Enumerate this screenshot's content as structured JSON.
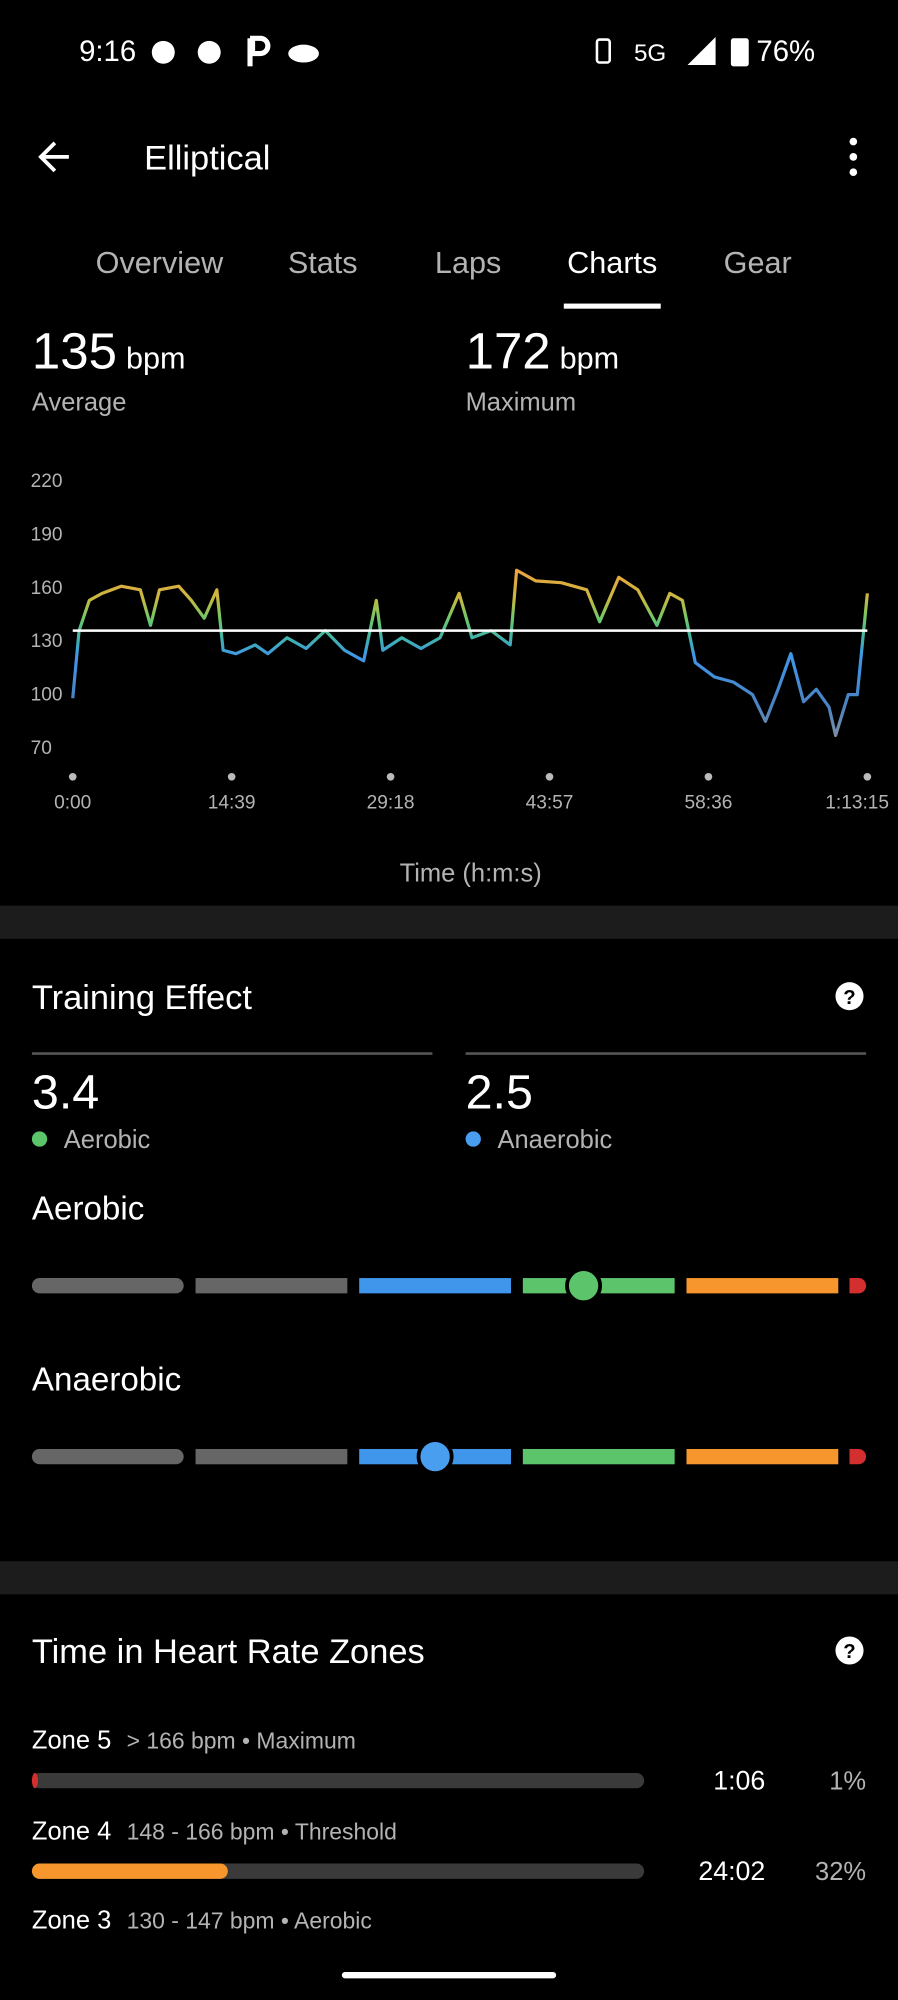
{
  "status_bar": {
    "time": "9:16",
    "network": "5G",
    "battery": "76%"
  },
  "header": {
    "title": "Elliptical"
  },
  "tabs": [
    "Overview",
    "Stats",
    "Laps",
    "Charts",
    "Gear"
  ],
  "active_tab": 3,
  "summary": [
    {
      "value": 135,
      "unit": "bpm",
      "label": "Average"
    },
    {
      "value": 172,
      "unit": "bpm",
      "label": "Maximum"
    }
  ],
  "chart_data": {
    "type": "line",
    "x_label": "Time (h:m:s)",
    "x": [
      0,
      35,
      92,
      162,
      268,
      374,
      430,
      480,
      586,
      656,
      727,
      797,
      832,
      903,
      1009,
      1079,
      1185,
      1291,
      1397,
      1503,
      1609,
      1679,
      1715,
      1820,
      1926,
      2032,
      2137,
      2208,
      2314,
      2420,
      2455,
      2561,
      2702,
      2843,
      2914,
      3020,
      3125,
      3231,
      3302,
      3372,
      3443,
      3549,
      3654,
      3760,
      3831,
      3901,
      3972,
      4042,
      4113,
      4183,
      4219,
      4289,
      4339,
      4395
    ],
    "values": [
      97,
      135,
      152,
      156,
      160,
      158,
      138,
      158,
      160,
      152,
      142,
      158,
      124,
      122,
      127,
      122,
      131,
      125,
      135,
      124,
      118,
      152,
      124,
      131,
      125,
      131,
      156,
      131,
      135,
      127,
      169,
      163,
      162,
      158,
      140,
      165,
      158,
      138,
      156,
      152,
      117,
      109,
      106,
      99,
      84,
      102,
      122,
      95,
      102,
      92,
      76,
      99,
      99,
      156
    ],
    "xlim": [
      0,
      4395
    ],
    "xticks": [
      {
        "value": 0,
        "label": "0:00"
      },
      {
        "value": 879,
        "label": "14:39"
      },
      {
        "value": 1758,
        "label": "29:18"
      },
      {
        "value": 2637,
        "label": "43:57"
      },
      {
        "value": 3516,
        "label": "58:36"
      },
      {
        "value": 4395,
        "label": "1:13:15"
      }
    ],
    "ylim": [
      70,
      220
    ],
    "yticks": [
      70,
      100,
      130,
      160,
      190,
      220
    ]
  },
  "training_effect": {
    "title": "Training Effect",
    "aerobic": {
      "value": 3.4,
      "label": "Aerobic"
    },
    "anaerobic": {
      "value": 2.5,
      "label": "Anaerobic"
    }
  },
  "zones": {
    "title": "Time in Heart Rate Zones",
    "items": [
      {
        "name": "Zone 5",
        "range": "> 166 bpm • Maximum",
        "time": "1:06",
        "percent": 1,
        "percent_label": "1%",
        "color": "#d32f2f"
      },
      {
        "name": "Zone 4",
        "range": "148 - 166 bpm • Threshold",
        "time": "24:02",
        "percent": 32,
        "percent_label": "32%",
        "color": "#f7962d"
      },
      {
        "name": "Zone 3",
        "range": "130 - 147 bpm • Aerobic"
      }
    ]
  }
}
